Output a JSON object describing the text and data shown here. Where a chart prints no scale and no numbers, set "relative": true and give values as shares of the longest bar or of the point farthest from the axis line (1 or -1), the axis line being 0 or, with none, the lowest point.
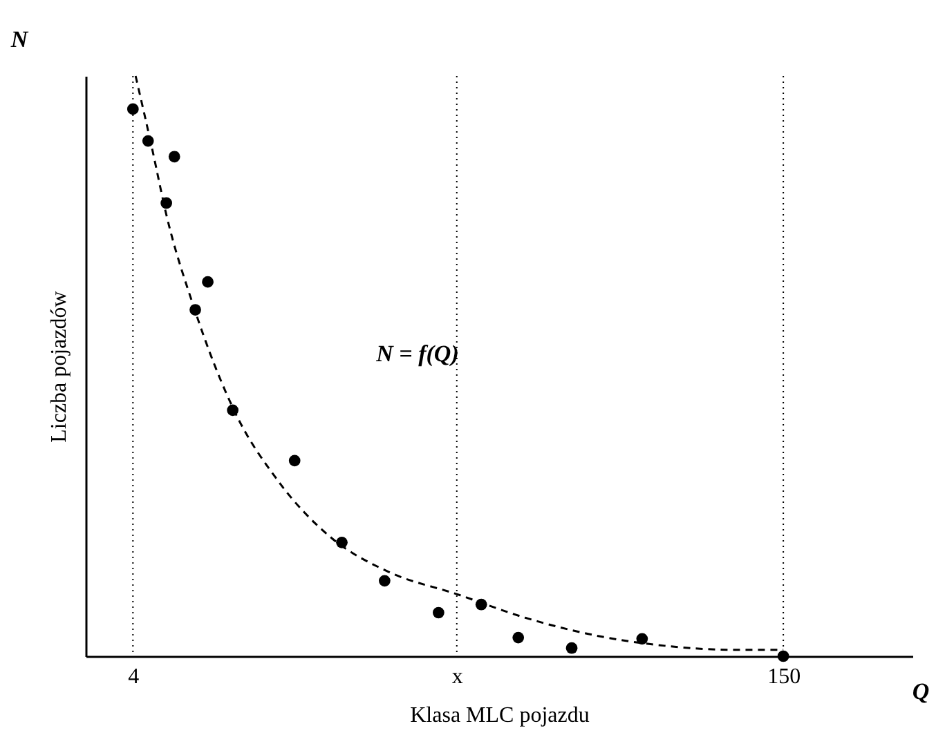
{
  "chart_data": {
    "type": "scatter",
    "relative": true,
    "xlabel": "Klasa MLC pojazdu",
    "ylabel": "Liczba  pojazdów",
    "xlim": [
      -6.6,
      179
    ],
    "xticks": [
      4,
      {
        "value": 76.7,
        "label": "x"
      },
      150
    ],
    "annotations": [
      "N",
      "Q",
      "N = f(Q)"
    ],
    "ref_lines": [
      {
        "axis": "x",
        "value": 4,
        "line_style": "dotted"
      },
      {
        "axis": "x",
        "value": 76.7,
        "line_style": "dotted"
      },
      {
        "axis": "x",
        "value": 150,
        "line_style": "dotted"
      }
    ],
    "series": [
      {
        "color": "#000000",
        "marker": "circle",
        "x": [
          4,
          7.4,
          11.5,
          13.3,
          18.0,
          20.8,
          26.4,
          40.3,
          50.9,
          60.5,
          72.6,
          82.2,
          90.5,
          102.5,
          118.3,
          150
        ],
        "values": [
          0.943,
          0.888,
          0.781,
          0.861,
          0.597,
          0.645,
          0.424,
          0.337,
          0.196,
          0.13,
          0.075,
          0.089,
          0.032,
          0.014,
          0.03,
          0
        ]
      },
      {
        "type": "line",
        "line_style": "dashed",
        "color": "#000000",
        "x": [
          4.6,
          8.3,
          11.5,
          17.7,
          27,
          36.3,
          48.7,
          61.2,
          76.7,
          92.2,
          107.7,
          123.3,
          138.8,
          150
        ],
        "values": [
          1,
          0.875,
          0.761,
          0.601,
          0.419,
          0.305,
          0.203,
          0.146,
          0.107,
          0.066,
          0.036,
          0.018,
          0.011,
          0.011
        ]
      }
    ]
  }
}
